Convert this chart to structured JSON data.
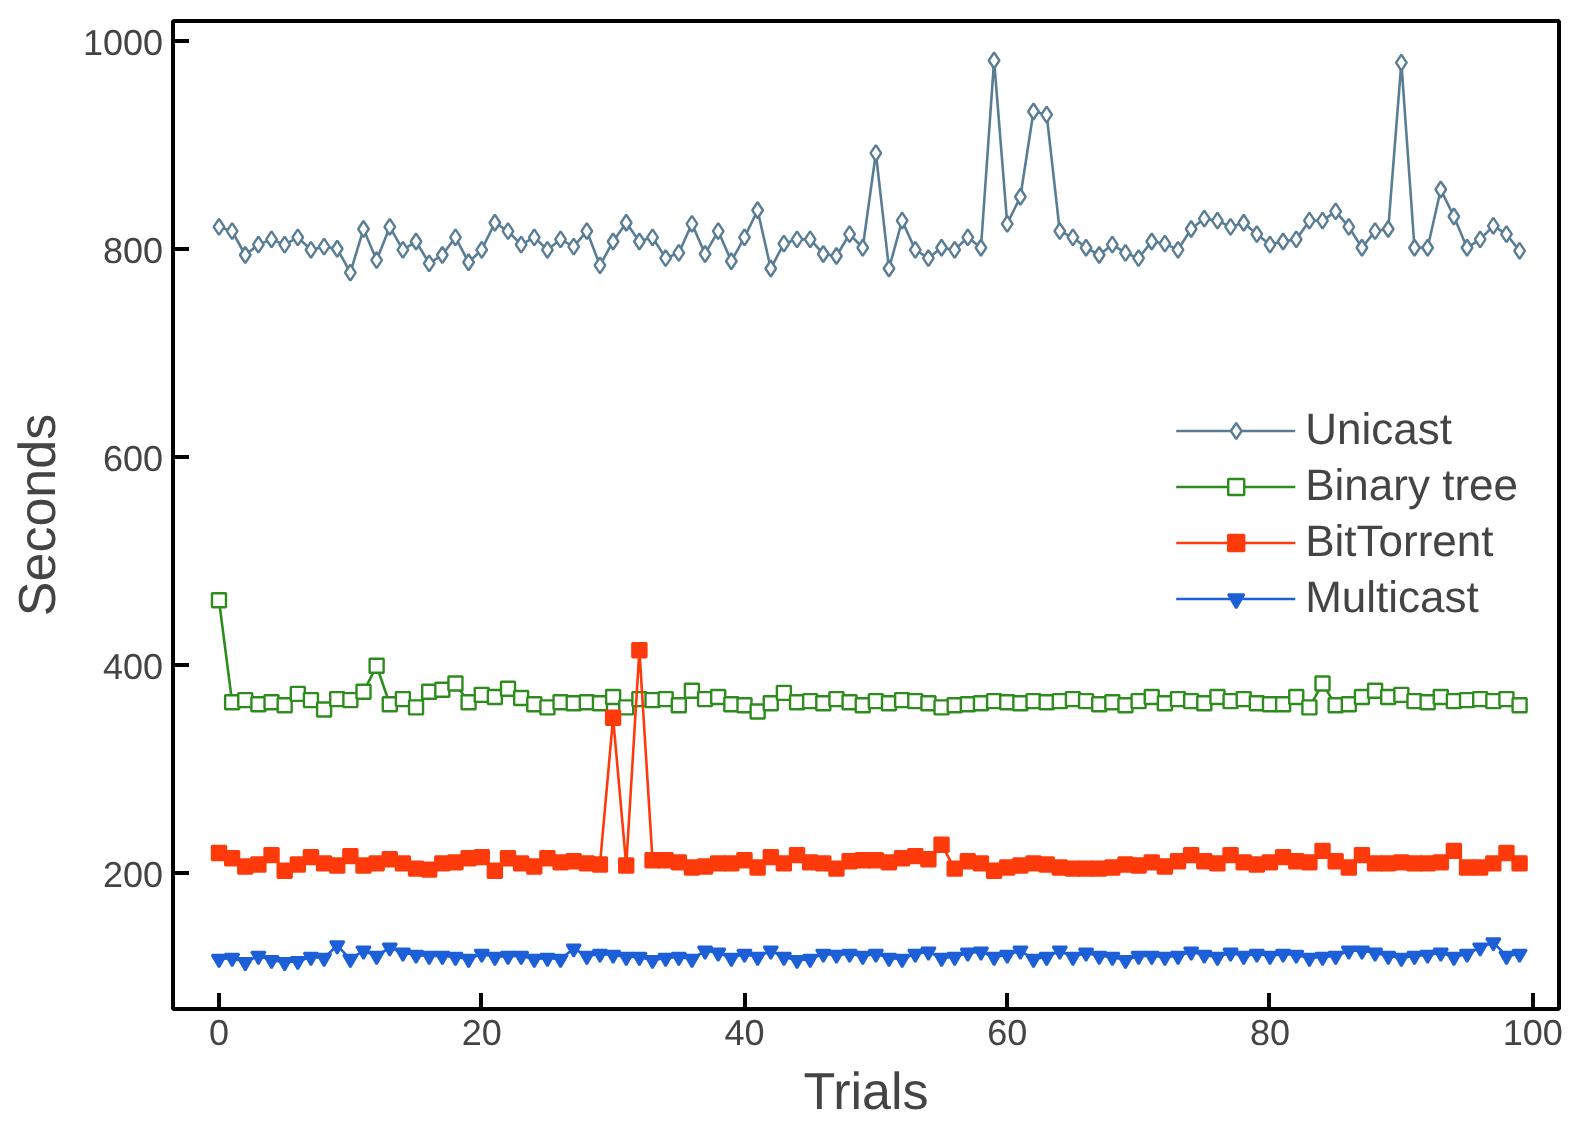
{
  "chart_data": {
    "type": "line",
    "xlabel": "Trials",
    "ylabel": "Seconds",
    "x": [
      0,
      1,
      2,
      3,
      4,
      5,
      6,
      7,
      8,
      9,
      10,
      11,
      12,
      13,
      14,
      15,
      16,
      17,
      18,
      19,
      20,
      21,
      22,
      23,
      24,
      25,
      26,
      27,
      28,
      29,
      30,
      31,
      32,
      33,
      34,
      35,
      36,
      37,
      38,
      39,
      40,
      41,
      42,
      43,
      44,
      45,
      46,
      47,
      48,
      49,
      50,
      51,
      52,
      53,
      54,
      55,
      56,
      57,
      58,
      59,
      60,
      61,
      62,
      63,
      64,
      65,
      66,
      67,
      68,
      69,
      70,
      71,
      72,
      73,
      74,
      75,
      76,
      77,
      78,
      79,
      80,
      81,
      82,
      83,
      84,
      85,
      86,
      87,
      88,
      89,
      90,
      91,
      92,
      93,
      94,
      95,
      96,
      97,
      98,
      99
    ],
    "xlim": [
      -3.5,
      102
    ],
    "ylim": [
      70,
      1020
    ],
    "xticks": [
      0,
      20,
      40,
      60,
      80,
      100
    ],
    "yticks": [
      200,
      400,
      600,
      800,
      1000
    ],
    "legend": "right",
    "grid": false,
    "line_style": "solid",
    "series": [
      {
        "name": "Unicast",
        "color": "#587d94",
        "marker": "diamond",
        "values": [
          822,
          818,
          795,
          805,
          810,
          805,
          812,
          800,
          803,
          801,
          778,
          820,
          790,
          822,
          800,
          808,
          787,
          795,
          812,
          788,
          800,
          826,
          818,
          805,
          812,
          800,
          810,
          803,
          818,
          785,
          808,
          826,
          808,
          812,
          792,
          797,
          825,
          796,
          818,
          789,
          812,
          838,
          782,
          806,
          810,
          810,
          796,
          794,
          815,
          802,
          893,
          782,
          828,
          800,
          792,
          802,
          800,
          812,
          802,
          982,
          825,
          851,
          933,
          930,
          818,
          812,
          802,
          795,
          805,
          797,
          792,
          808,
          806,
          800,
          820,
          830,
          828,
          822,
          826,
          815,
          805,
          808,
          810,
          828,
          828,
          837,
          822,
          802,
          818,
          820,
          980,
          802,
          802,
          858,
          832,
          802,
          810,
          823,
          815,
          799
        ]
      },
      {
        "name": "Binary tree",
        "color": "#2e8b1e",
        "marker": "square",
        "values": [
          463,
          365,
          367,
          363,
          365,
          362,
          373,
          367,
          358,
          368,
          367,
          375,
          400,
          363,
          368,
          360,
          375,
          377,
          383,
          365,
          372,
          370,
          378,
          369,
          363,
          360,
          365,
          364,
          365,
          364,
          370,
          360,
          368,
          367,
          368,
          362,
          376,
          368,
          370,
          363,
          362,
          356,
          364,
          374,
          365,
          366,
          364,
          368,
          365,
          362,
          366,
          364,
          367,
          366,
          364,
          360,
          362,
          363,
          364,
          366,
          365,
          364,
          366,
          365,
          366,
          368,
          366,
          363,
          365,
          362,
          366,
          370,
          364,
          368,
          366,
          364,
          370,
          366,
          368,
          364,
          363,
          363,
          370,
          360,
          383,
          362,
          363,
          370,
          376,
          370,
          372,
          366,
          365,
          370,
          366,
          367,
          368,
          366,
          368,
          362
        ]
      },
      {
        "name": "BitTorrent",
        "color": "#ff3a0a",
        "marker": "square",
        "values": [
          220,
          215,
          207,
          209,
          218,
          203,
          209,
          216,
          210,
          208,
          217,
          208,
          210,
          214,
          210,
          205,
          204,
          210,
          211,
          215,
          216,
          203,
          215,
          210,
          207,
          215,
          211,
          212,
          210,
          209,
          350,
          208,
          415,
          213,
          213,
          211,
          206,
          207,
          210,
          210,
          213,
          206,
          216,
          210,
          218,
          211,
          210,
          205,
          212,
          213,
          213,
          211,
          215,
          217,
          214,
          228,
          205,
          212,
          210,
          203,
          206,
          208,
          210,
          209,
          206,
          205,
          205,
          205,
          206,
          209,
          208,
          211,
          207,
          212,
          218,
          212,
          210,
          218,
          211,
          209,
          211,
          216,
          212,
          211,
          222,
          212,
          206,
          218,
          210,
          210,
          211,
          210,
          210,
          211,
          222,
          206,
          206,
          210,
          220,
          210
        ]
      },
      {
        "name": "Multicast",
        "color": "#1d5fd6",
        "marker": "triangle",
        "values": [
          118,
          119,
          115,
          121,
          117,
          115,
          116,
          120,
          119,
          131,
          118,
          126,
          121,
          129,
          124,
          122,
          121,
          121,
          120,
          118,
          123,
          120,
          121,
          121,
          118,
          119,
          118,
          128,
          121,
          123,
          122,
          120,
          120,
          117,
          119,
          120,
          118,
          126,
          124,
          119,
          123,
          120,
          126,
          120,
          117,
          118,
          123,
          122,
          123,
          121,
          123,
          119,
          118,
          123,
          125,
          119,
          120,
          124,
          125,
          120,
          122,
          126,
          118,
          120,
          126,
          120,
          124,
          121,
          120,
          117,
          121,
          121,
          120,
          121,
          125,
          122,
          120,
          124,
          121,
          123,
          121,
          123,
          122,
          119,
          120,
          121,
          126,
          126,
          124,
          121,
          119,
          121,
          122,
          124,
          120,
          123,
          129,
          134,
          121,
          123
        ]
      }
    ]
  }
}
